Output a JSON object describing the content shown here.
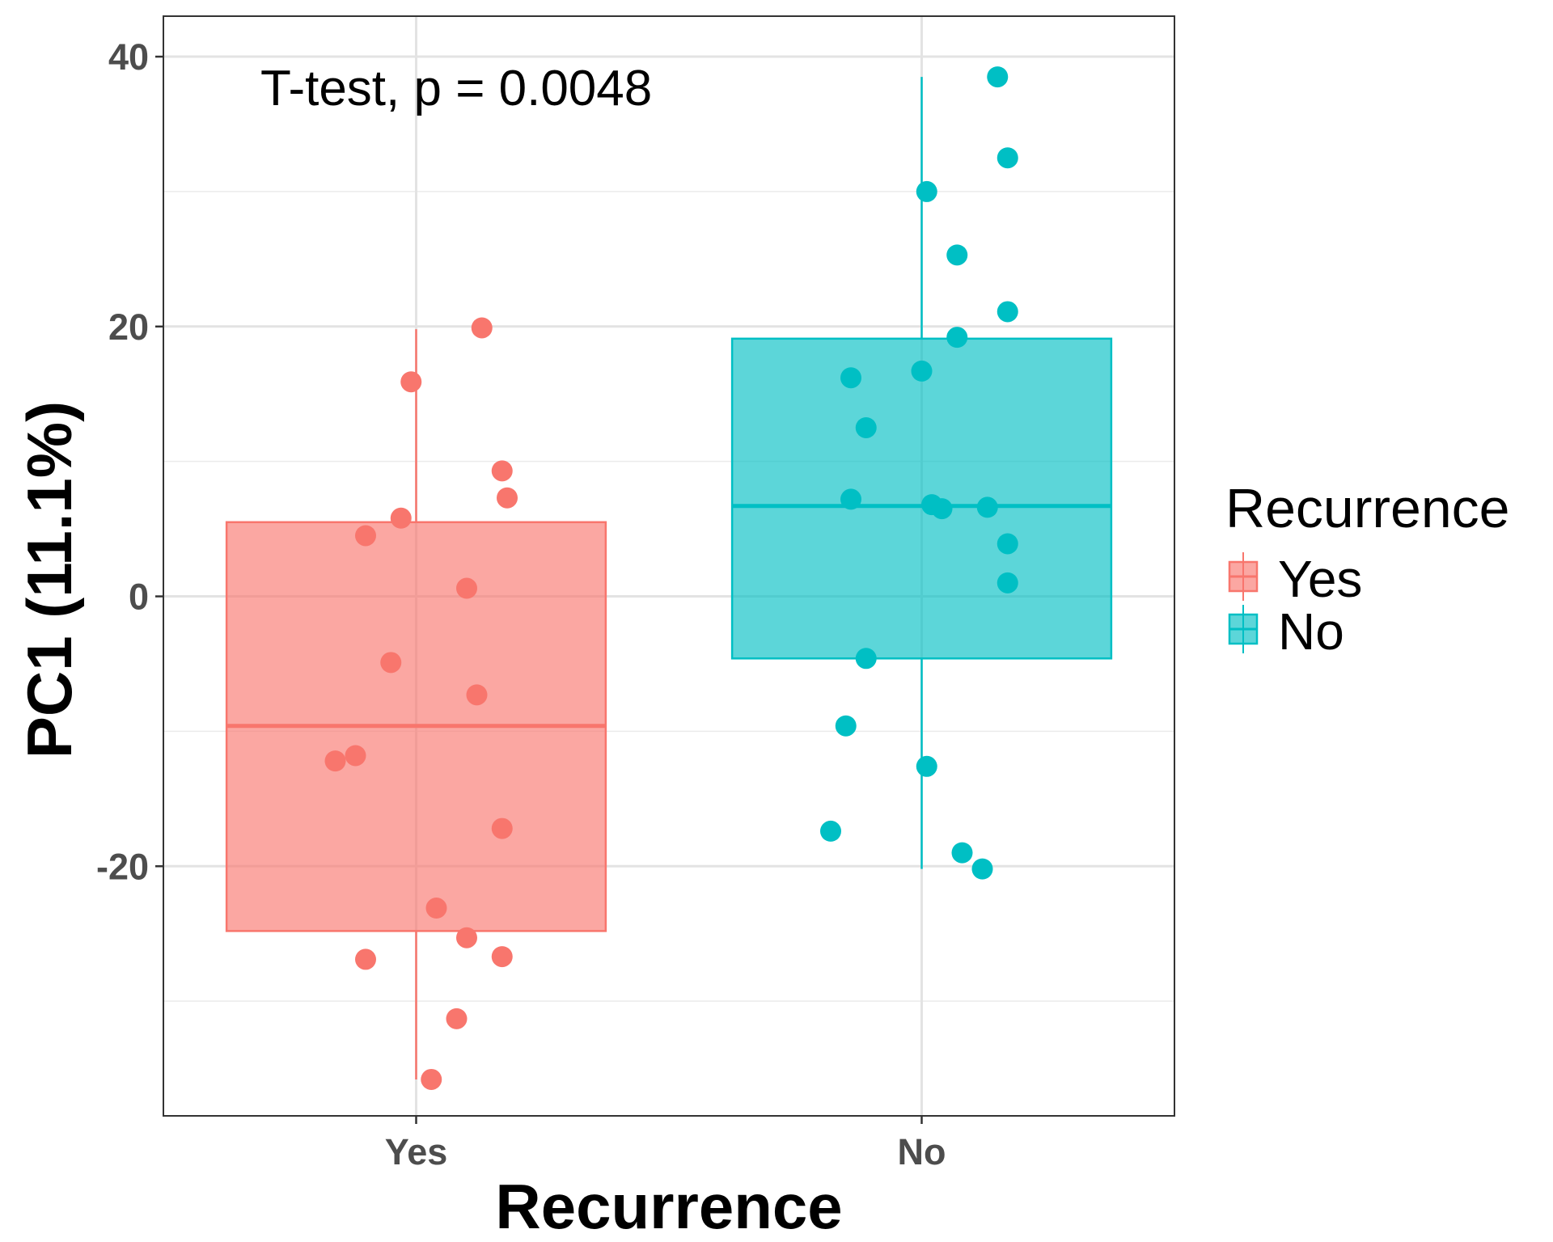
{
  "chart_data": {
    "type": "box",
    "annotation": "T-test, p = 0.0048",
    "xlabel": "Recurrence",
    "ylabel": "PC1 (11.1%)",
    "categories": [
      "Yes",
      "No"
    ],
    "ylim": [
      -38.5,
      43
    ],
    "yticks": [
      40,
      20,
      0,
      -20
    ],
    "ytick_labels": [
      "40",
      "20",
      "0",
      "-20"
    ],
    "grid": true,
    "legend": {
      "title": "Recurrence",
      "position": "right",
      "entries": [
        "Yes",
        "No"
      ]
    },
    "series": [
      {
        "category": "Yes",
        "color": "#F8766D",
        "box": {
          "whisker_low": -35.8,
          "q1": -24.8,
          "median": -9.6,
          "q3": 5.5,
          "whisker_high": 19.8
        },
        "points": [
          {
            "x": 0.13,
            "y": 19.9
          },
          {
            "x": -0.01,
            "y": 15.9
          },
          {
            "x": 0.17,
            "y": 9.3
          },
          {
            "x": 0.18,
            "y": 7.3
          },
          {
            "x": -0.03,
            "y": 5.8
          },
          {
            "x": -0.1,
            "y": 4.5
          },
          {
            "x": 0.1,
            "y": 0.6
          },
          {
            "x": -0.05,
            "y": -4.9
          },
          {
            "x": 0.12,
            "y": -7.3
          },
          {
            "x": -0.12,
            "y": -11.8
          },
          {
            "x": -0.16,
            "y": -12.2
          },
          {
            "x": 0.17,
            "y": -17.2
          },
          {
            "x": 0.04,
            "y": -23.1
          },
          {
            "x": 0.1,
            "y": -25.3
          },
          {
            "x": 0.17,
            "y": -26.7
          },
          {
            "x": -0.1,
            "y": -26.9
          },
          {
            "x": 0.08,
            "y": -31.3
          },
          {
            "x": 0.03,
            "y": -35.8
          }
        ]
      },
      {
        "category": "No",
        "color": "#00BFC4",
        "box": {
          "whisker_low": -20.2,
          "q1": -4.6,
          "median": 6.7,
          "q3": 19.1,
          "whisker_high": 38.5
        },
        "points": [
          {
            "x": 0.15,
            "y": 38.5
          },
          {
            "x": 0.17,
            "y": 32.5
          },
          {
            "x": 0.01,
            "y": 30.0
          },
          {
            "x": 0.07,
            "y": 25.3
          },
          {
            "x": 0.17,
            "y": 21.1
          },
          {
            "x": 0.07,
            "y": 19.2
          },
          {
            "x": -0.14,
            "y": 16.2
          },
          {
            "x": 0.0,
            "y": 16.7
          },
          {
            "x": -0.11,
            "y": 12.5
          },
          {
            "x": -0.14,
            "y": 7.2
          },
          {
            "x": 0.02,
            "y": 6.8
          },
          {
            "x": 0.04,
            "y": 6.5
          },
          {
            "x": 0.13,
            "y": 6.6
          },
          {
            "x": 0.17,
            "y": 3.9
          },
          {
            "x": 0.17,
            "y": 1.0
          },
          {
            "x": -0.11,
            "y": -4.6
          },
          {
            "x": -0.15,
            "y": -9.6
          },
          {
            "x": 0.01,
            "y": -12.6
          },
          {
            "x": -0.18,
            "y": -17.4
          },
          {
            "x": 0.08,
            "y": -19.0
          },
          {
            "x": 0.12,
            "y": -20.2
          }
        ]
      }
    ]
  }
}
